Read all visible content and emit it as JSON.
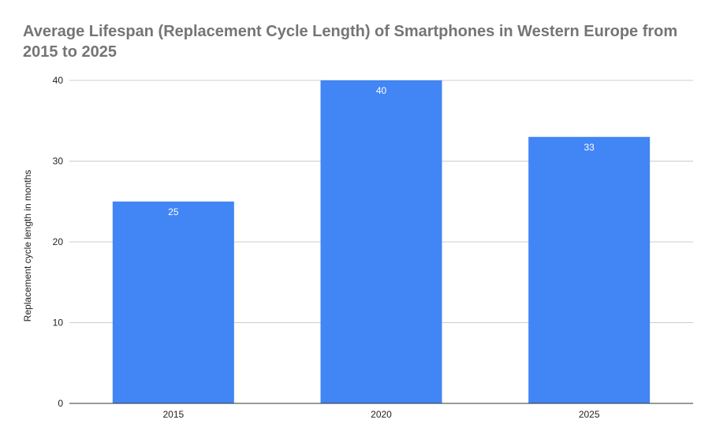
{
  "chart_data": {
    "type": "bar",
    "title": "Average Lifespan (Replacement Cycle Length) of Smartphones in Western Europe from 2015 to 2025",
    "xlabel": "",
    "ylabel": "Replacement cycle length in months",
    "categories": [
      "2015",
      "2020",
      "2025"
    ],
    "series": [
      {
        "values": [
          25,
          40,
          33
        ],
        "color": "#4285f4"
      }
    ],
    "data_labels": [
      "25",
      "40",
      "33"
    ],
    "ylim": [
      0,
      40
    ],
    "yticks": [
      0,
      10,
      20,
      30,
      40
    ],
    "ytick_labels": [
      "0",
      "10",
      "20",
      "30",
      "40"
    ],
    "grid": true,
    "legend": "none",
    "colors": {
      "bar": "#4285f4",
      "grid": "#cccccc",
      "axis": "#333333",
      "title": "#757575",
      "text": "#222222",
      "data_label": "#ffffff"
    }
  }
}
